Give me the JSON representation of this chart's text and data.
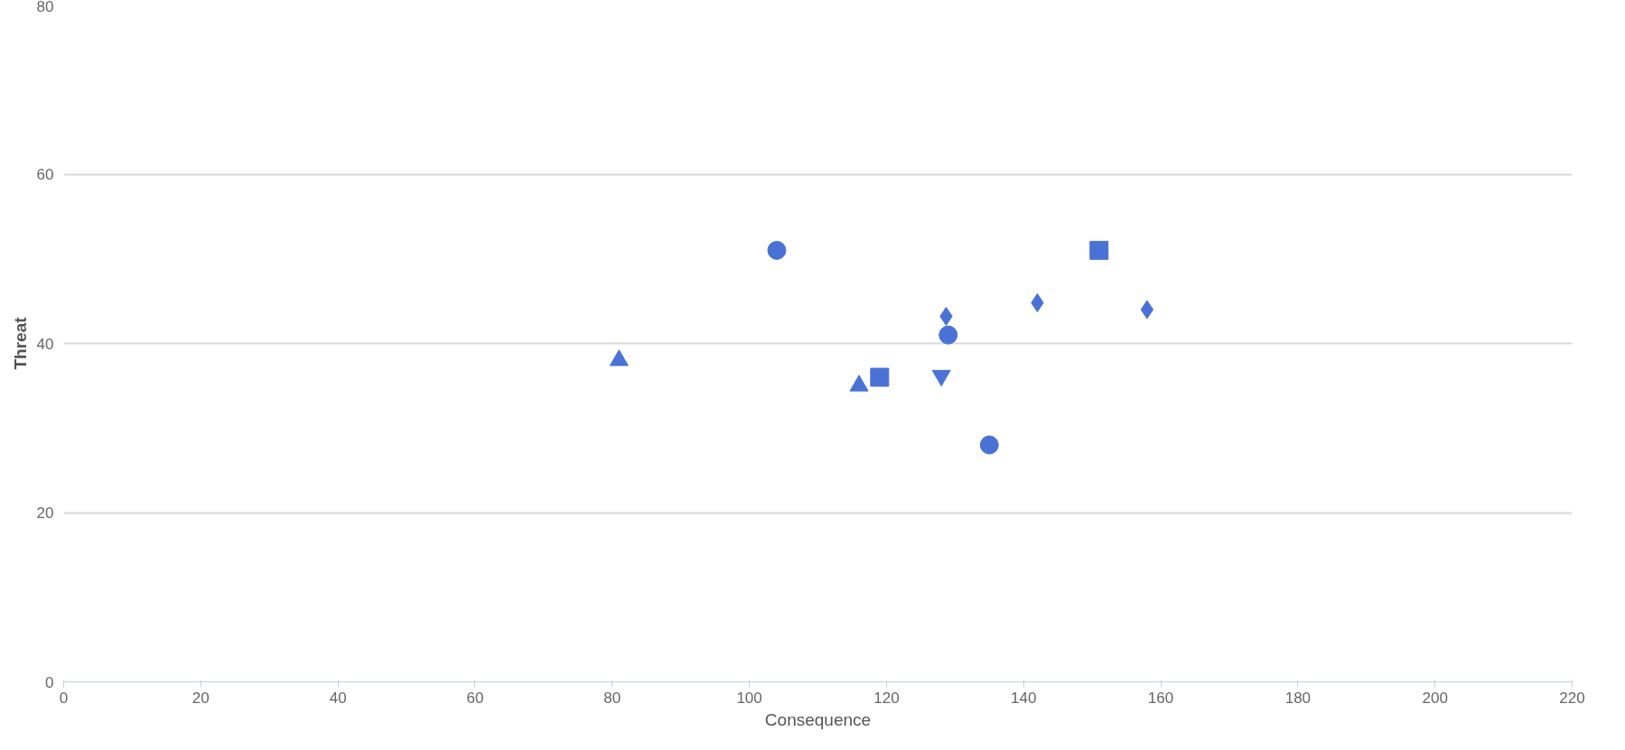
{
  "chart_data": {
    "type": "scatter",
    "xlabel": "Consequence",
    "ylabel": "Threat",
    "xlim": [
      0,
      220
    ],
    "xticks": [
      0,
      20,
      40,
      60,
      80,
      100,
      120,
      140,
      160,
      180,
      200,
      220
    ],
    "ylim": [
      0,
      80
    ],
    "yticks": [
      0,
      20,
      40,
      60,
      80
    ],
    "grid": "y",
    "series": [
      {
        "color": "#4a72d6",
        "marker": "circle",
        "x": [
          104,
          129,
          135
        ],
        "values": [
          51,
          41,
          28
        ]
      },
      {
        "color": "#4a72d6",
        "marker": "square",
        "x": [
          119,
          151
        ],
        "values": [
          36,
          51
        ]
      },
      {
        "color": "#4a72d6",
        "marker": "triangle",
        "x": [
          81,
          116
        ],
        "values": [
          38,
          35
        ]
      },
      {
        "color": "#4a72d6",
        "x": [
          128
        ],
        "values": [
          36.2
        ]
      },
      {
        "color": "#4a72d6",
        "marker": "diamond",
        "x": [
          128.7,
          142,
          158
        ],
        "values": [
          43.2,
          44.8,
          44
        ]
      }
    ]
  }
}
